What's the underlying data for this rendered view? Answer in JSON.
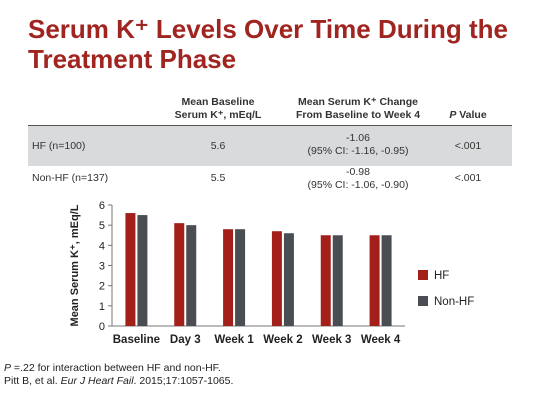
{
  "title_line1": "Serum K⁺ Levels Over Time During the",
  "title_line2": "Treatment Phase",
  "table": {
    "headers": {
      "col2_line1": "Mean Baseline",
      "col2_line2": "Serum K⁺, mEq/L",
      "col3_line1": "Mean Serum K⁺ Change",
      "col3_line2": "From Baseline to Week 4",
      "col4_italic": "P",
      "col4_rest": " Value"
    },
    "rows": [
      {
        "group": "HF (n=100)",
        "baseline": "5.6",
        "change": "-1.06",
        "ci": "(95% CI: -1.16, -0.95)",
        "p": "<.001"
      },
      {
        "group": "Non-HF (n=137)",
        "baseline": "5.5",
        "change": "-0.98",
        "ci": "(95% CI: -1.06, -0.90)",
        "p": "<.001"
      }
    ]
  },
  "chart_data": {
    "type": "bar",
    "categories": [
      "Baseline",
      "Day 3",
      "Week 1",
      "Week 2",
      "Week 3",
      "Week 4"
    ],
    "series": [
      {
        "name": "HF",
        "color": "#a31f1a",
        "values": [
          5.6,
          5.1,
          4.8,
          4.7,
          4.5,
          4.5
        ]
      },
      {
        "name": "Non-HF",
        "color": "#4a4e52",
        "values": [
          5.5,
          5.0,
          4.8,
          4.6,
          4.5,
          4.5
        ]
      }
    ],
    "ylabel": "Mean Serum K⁺, mEq/L",
    "ylim": [
      0,
      6
    ],
    "yticks": [
      "0",
      "1",
      "2",
      "3",
      "4",
      "5",
      "6"
    ],
    "grid": false,
    "legend_position": "right"
  },
  "footer": {
    "line1_italic": "P",
    "line1_rest": " =.22 for interaction between HF and non-HF.",
    "line2_pre": "Pitt B, et al. ",
    "line2_italic": "Eur J Heart Fail",
    "line2_post": ". 2015;17:1057-1065."
  }
}
